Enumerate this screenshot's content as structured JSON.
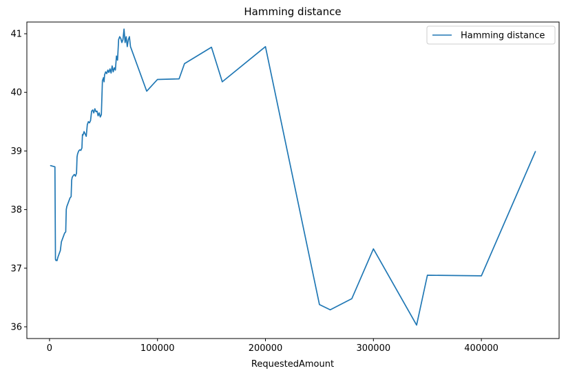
{
  "chart_data": {
    "type": "line",
    "title": "Hamming distance",
    "xlabel": "RequestedAmount",
    "ylabel": "",
    "xlim": [
      -21000,
      472000
    ],
    "ylim": [
      35.8,
      41.2
    ],
    "xticks": [
      0,
      100000,
      200000,
      300000,
      400000
    ],
    "xtick_labels": [
      "0",
      "100000",
      "200000",
      "300000",
      "400000"
    ],
    "yticks": [
      36,
      37,
      38,
      39,
      40,
      41
    ],
    "ytick_labels": [
      "36",
      "37",
      "38",
      "39",
      "40",
      "41"
    ],
    "legend_position": "top-right",
    "grid": false,
    "series": [
      {
        "name": "Hamming distance",
        "color": "#1f77b4",
        "x": [
          1000,
          3000,
          5000,
          5500,
          6000,
          6500,
          7000,
          7500,
          8000,
          9000,
          10000,
          11000,
          12000,
          13000,
          14000,
          15000,
          15500,
          16000,
          17000,
          18000,
          19000,
          20000,
          20500,
          21000,
          22000,
          23000,
          24000,
          25000,
          25500,
          26000,
          27000,
          28000,
          29000,
          30000,
          30500,
          31000,
          32000,
          33000,
          34000,
          35000,
          36000,
          37000,
          38000,
          39000,
          40000,
          41000,
          42000,
          43000,
          44000,
          45000,
          46000,
          47000,
          48000,
          49000,
          50000,
          50500,
          51000,
          52000,
          53000,
          54000,
          55000,
          56000,
          57000,
          58000,
          59000,
          60000,
          61000,
          62000,
          63000,
          64000,
          65000,
          66000,
          67000,
          68000,
          69000,
          70000,
          71000,
          72000,
          73000,
          74000,
          75000,
          90000,
          100000,
          120000,
          125000,
          150000,
          160000,
          200000,
          250000,
          260000,
          280000,
          300000,
          340000,
          350000,
          400000,
          450000
        ],
        "y": [
          38.75,
          38.74,
          38.73,
          37.15,
          37.13,
          37.14,
          37.13,
          37.17,
          37.2,
          37.25,
          37.3,
          37.45,
          37.5,
          37.55,
          37.6,
          37.62,
          38.0,
          38.05,
          38.1,
          38.15,
          38.2,
          38.22,
          38.5,
          38.55,
          38.58,
          38.6,
          38.57,
          38.62,
          38.9,
          38.95,
          39.0,
          39.02,
          39.01,
          39.05,
          39.28,
          39.27,
          39.33,
          39.29,
          39.25,
          39.45,
          39.5,
          39.48,
          39.52,
          39.68,
          39.7,
          39.65,
          39.72,
          39.67,
          39.68,
          39.6,
          39.65,
          39.58,
          39.62,
          40.2,
          40.25,
          40.18,
          40.3,
          40.35,
          40.32,
          40.38,
          40.34,
          40.4,
          40.33,
          40.45,
          40.35,
          40.42,
          40.38,
          40.62,
          40.55,
          40.9,
          40.95,
          40.92,
          40.85,
          40.9,
          41.08,
          40.85,
          40.95,
          40.78,
          40.9,
          40.95,
          40.78,
          40.02,
          40.22,
          40.23,
          40.49,
          40.77,
          40.18,
          40.78,
          36.38,
          36.29,
          36.48,
          37.33,
          36.03,
          36.88,
          36.87,
          38.99
        ]
      }
    ]
  }
}
